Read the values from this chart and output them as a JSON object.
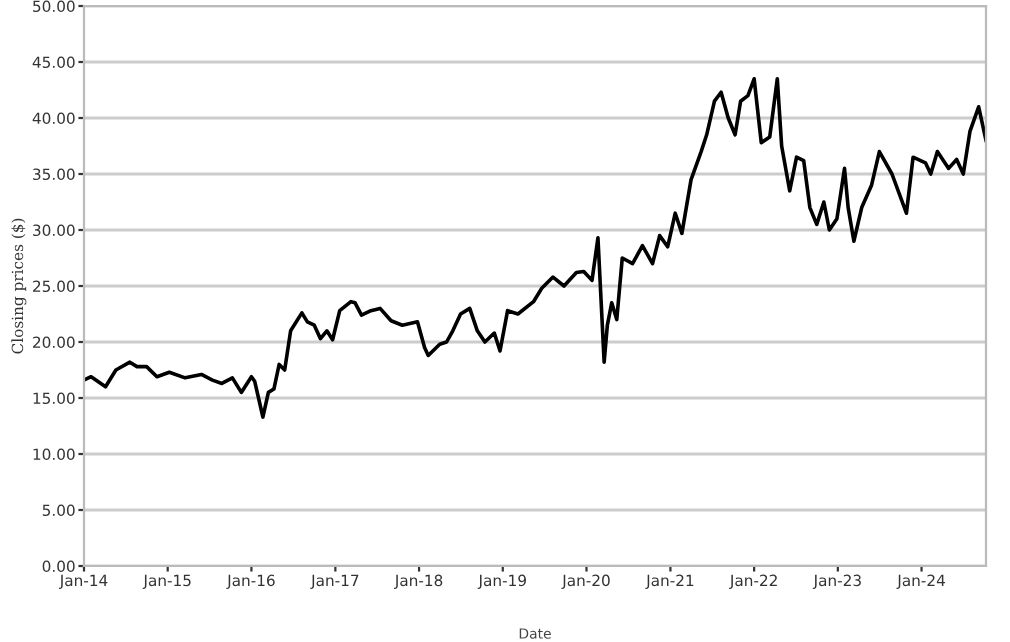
{
  "chart_data": {
    "type": "line",
    "xlabel": "Date",
    "ylabel": "Closing prices ($)",
    "x": [
      "2014-01-01",
      "2014-02-01",
      "2014-04-05",
      "2014-05-20",
      "2014-07-20",
      "2014-08-20",
      "2014-10-01",
      "2014-11-15",
      "2015-01-08",
      "2015-03-18",
      "2015-05-28",
      "2015-07-15",
      "2015-08-25",
      "2015-10-10",
      "2015-11-18",
      "2016-01-01",
      "2016-01-15",
      "2016-02-01",
      "2016-02-20",
      "2016-03-15",
      "2016-04-08",
      "2016-05-01",
      "2016-05-25",
      "2016-06-20",
      "2016-08-08",
      "2016-09-01",
      "2016-10-01",
      "2016-10-28",
      "2016-11-25",
      "2016-12-20",
      "2017-01-20",
      "2017-03-10",
      "2017-03-28",
      "2017-04-25",
      "2017-06-05",
      "2017-07-15",
      "2017-09-01",
      "2017-10-20",
      "2017-12-25",
      "2018-01-25",
      "2018-02-10",
      "2018-04-01",
      "2018-05-01",
      "2018-05-28",
      "2018-07-01",
      "2018-08-10",
      "2018-09-12",
      "2018-10-15",
      "2018-11-25",
      "2018-12-20",
      "2019-01-22",
      "2019-03-08",
      "2019-05-15",
      "2019-06-20",
      "2019-08-08",
      "2019-09-25",
      "2019-11-18",
      "2019-12-20",
      "2020-01-25",
      "2020-02-20",
      "2020-03-18",
      "2020-04-01",
      "2020-04-20",
      "2020-05-12",
      "2020-06-05",
      "2020-07-20",
      "2020-09-01",
      "2020-10-15",
      "2020-11-15",
      "2020-12-20",
      "2021-01-22",
      "2021-02-20",
      "2021-04-01",
      "2021-05-15",
      "2021-06-08",
      "2021-07-12",
      "2021-08-10",
      "2021-09-10",
      "2021-10-10",
      "2021-11-03",
      "2021-12-05",
      "2022-01-01",
      "2022-02-01",
      "2022-03-10",
      "2022-04-12",
      "2022-05-01",
      "2022-06-05",
      "2022-07-05",
      "2022-08-05",
      "2022-09-01",
      "2022-10-01",
      "2022-11-01",
      "2022-11-25",
      "2022-12-28",
      "2023-01-30",
      "2023-02-15",
      "2023-03-12",
      "2023-04-15",
      "2023-05-28",
      "2023-07-01",
      "2023-08-25",
      "2023-10-27",
      "2023-11-25",
      "2024-01-18",
      "2024-02-10",
      "2024-03-10",
      "2024-04-28",
      "2024-06-02",
      "2024-07-01",
      "2024-07-30",
      "2024-09-06",
      "2024-10-08"
    ],
    "series": [
      {
        "color": "#000000",
        "values": [
          16.6,
          16.9,
          16.0,
          17.5,
          18.2,
          17.8,
          17.8,
          16.9,
          17.3,
          16.8,
          17.1,
          16.6,
          16.3,
          16.8,
          15.5,
          16.9,
          16.5,
          15.0,
          13.3,
          15.5,
          15.8,
          18.0,
          17.5,
          21.0,
          22.6,
          21.8,
          21.5,
          20.3,
          21.0,
          20.2,
          22.8,
          23.6,
          23.5,
          22.4,
          22.8,
          23.0,
          21.9,
          21.5,
          21.8,
          19.5,
          18.8,
          19.8,
          20.0,
          21.0,
          22.5,
          23.0,
          21.0,
          20.0,
          20.8,
          19.2,
          22.8,
          22.5,
          23.6,
          24.8,
          25.8,
          25.0,
          26.2,
          26.3,
          25.5,
          29.3,
          18.2,
          21.5,
          23.5,
          22.0,
          27.5,
          27.0,
          28.6,
          27.0,
          29.5,
          28.5,
          31.5,
          29.7,
          34.5,
          37.0,
          38.5,
          41.5,
          42.3,
          40.0,
          38.5,
          41.5,
          42.0,
          43.5,
          37.8,
          38.3,
          43.5,
          37.5,
          33.5,
          36.5,
          36.2,
          32.0,
          30.5,
          32.5,
          30.0,
          31.0,
          35.5,
          32.0,
          29.0,
          32.0,
          34.0,
          37.0,
          35.0,
          31.5,
          36.5,
          36.0,
          35.0,
          37.0,
          35.5,
          36.3,
          35.0,
          38.8,
          41.0,
          38.0
        ]
      }
    ],
    "xlim": [
      "2014-01-01",
      "2024-10-08"
    ],
    "xticks": [
      {
        "value": "2014-01-01",
        "label": "Jan-14"
      },
      {
        "value": "2015-01-01",
        "label": "Jan-15"
      },
      {
        "value": "2016-01-01",
        "label": "Jan-16"
      },
      {
        "value": "2017-01-01",
        "label": "Jan-17"
      },
      {
        "value": "2018-01-01",
        "label": "Jan-18"
      },
      {
        "value": "2019-01-01",
        "label": "Jan-19"
      },
      {
        "value": "2020-01-01",
        "label": "Jan-20"
      },
      {
        "value": "2021-01-01",
        "label": "Jan-21"
      },
      {
        "value": "2022-01-01",
        "label": "Jan-22"
      },
      {
        "value": "2023-01-01",
        "label": "Jan-23"
      },
      {
        "value": "2024-01-01",
        "label": "Jan-24"
      }
    ],
    "ylim": [
      0,
      50
    ],
    "yticks": [
      {
        "value": 0,
        "label": "0.00"
      },
      {
        "value": 5,
        "label": "5.00"
      },
      {
        "value": 10,
        "label": "10.00"
      },
      {
        "value": 15,
        "label": "15.00"
      },
      {
        "value": 20,
        "label": "20.00"
      },
      {
        "value": 25,
        "label": "25.00"
      },
      {
        "value": 30,
        "label": "30.00"
      },
      {
        "value": 35,
        "label": "35.00"
      },
      {
        "value": 40,
        "label": "40.00"
      },
      {
        "value": 45,
        "label": "45.00"
      },
      {
        "value": 50,
        "label": "50.00"
      }
    ],
    "grid": "y",
    "legend": false,
    "marker": "none",
    "line_style": "solid"
  }
}
